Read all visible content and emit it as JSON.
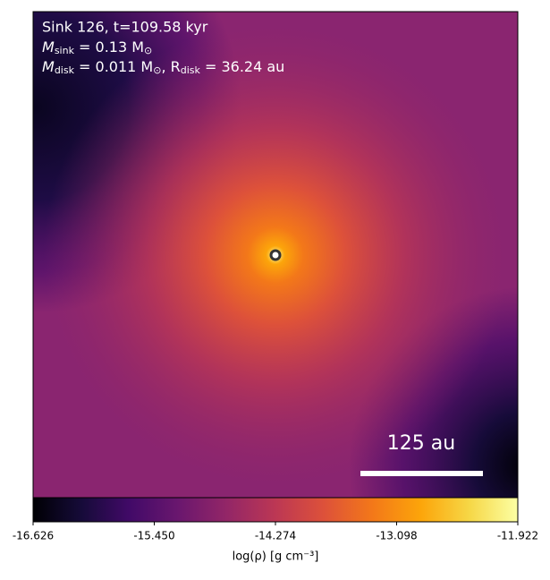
{
  "chart_data": {
    "type": "heatmap",
    "annotations": [
      "Sink 126, t=109.58 kyr",
      [
        "M",
        "sink",
        " = 0.13 M",
        "⊙"
      ],
      [
        "M",
        "disk",
        " = 0.011 M",
        "⊙",
        ", R",
        "disk",
        " = 36.24 au"
      ]
    ],
    "scale_bar_label": "125 au",
    "colorbar": {
      "label": "log(ρ) [g cm⁻³]",
      "xlim": [
        -16.626,
        -11.922
      ],
      "xticks": [
        -16.626,
        {
          "value": -15.45,
          "label": "-15.450"
        },
        -14.274,
        -13.098,
        -11.922
      ],
      "colormap": "inferno"
    }
  }
}
